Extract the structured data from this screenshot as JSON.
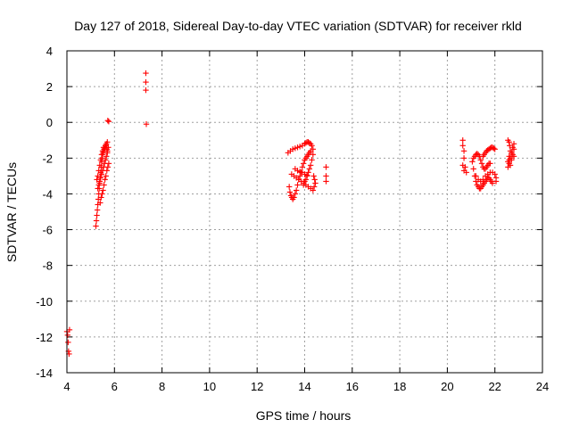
{
  "chart_data": {
    "type": "scatter",
    "title": "Day 127 of 2018, Sidereal Day-to-day VTEC variation (SDTVAR) for receiver rkld",
    "xlabel": "GPS time / hours",
    "ylabel": "SDTVAR / TECUs",
    "xlim": [
      4,
      24
    ],
    "ylim": [
      -14,
      4
    ],
    "xticks": [
      4,
      6,
      8,
      10,
      12,
      14,
      16,
      18,
      20,
      22,
      24
    ],
    "yticks": [
      4,
      2,
      0,
      -2,
      -4,
      -6,
      -8,
      -10,
      -12,
      -14
    ],
    "grid": true,
    "marker": "+",
    "marker_color": "#ff0000",
    "series": [
      {
        "name": "SDTVAR",
        "points": [
          [
            4.0,
            -11.7
          ],
          [
            4.03,
            -11.9
          ],
          [
            4.05,
            -12.3
          ],
          [
            4.07,
            -12.8
          ],
          [
            4.09,
            -12.95
          ],
          [
            4.11,
            -11.6
          ],
          [
            5.22,
            -5.8
          ],
          [
            5.24,
            -5.5
          ],
          [
            5.26,
            -5.2
          ],
          [
            5.28,
            -4.9
          ],
          [
            5.3,
            -4.6
          ],
          [
            5.32,
            -4.3
          ],
          [
            5.34,
            -4.0
          ],
          [
            5.36,
            -3.7
          ],
          [
            5.38,
            -3.4
          ],
          [
            5.4,
            -3.1
          ],
          [
            5.42,
            -2.8
          ],
          [
            5.44,
            -2.5
          ],
          [
            5.46,
            -2.2
          ],
          [
            5.48,
            -2.0
          ],
          [
            5.5,
            -1.8
          ],
          [
            5.52,
            -1.7
          ],
          [
            5.54,
            -1.6
          ],
          [
            5.56,
            -1.5
          ],
          [
            5.58,
            -1.5
          ],
          [
            5.6,
            -1.4
          ],
          [
            5.62,
            -1.3
          ],
          [
            5.64,
            -1.3
          ],
          [
            5.66,
            -1.2
          ],
          [
            5.68,
            -1.5
          ],
          [
            5.7,
            -1.7
          ],
          [
            5.26,
            -3.2
          ],
          [
            5.3,
            -3.0
          ],
          [
            5.34,
            -2.7
          ],
          [
            5.38,
            -2.4
          ],
          [
            5.42,
            -2.1
          ],
          [
            5.46,
            -1.8
          ],
          [
            5.5,
            -1.6
          ],
          [
            5.54,
            -1.4
          ],
          [
            5.3,
            -3.7
          ],
          [
            5.34,
            -3.5
          ],
          [
            5.38,
            -3.3
          ],
          [
            5.42,
            -3.1
          ],
          [
            5.46,
            -2.9
          ],
          [
            5.5,
            -2.7
          ],
          [
            5.54,
            -2.5
          ],
          [
            5.58,
            -2.3
          ],
          [
            5.62,
            -2.1
          ],
          [
            5.66,
            -1.9
          ],
          [
            5.7,
            -1.6
          ],
          [
            5.74,
            -1.4
          ],
          [
            5.4,
            -4.5
          ],
          [
            5.44,
            -4.2
          ],
          [
            5.48,
            -4.0
          ],
          [
            5.52,
            -3.8
          ],
          [
            5.56,
            -3.5
          ],
          [
            5.6,
            -3.2
          ],
          [
            5.64,
            -3.0
          ],
          [
            5.68,
            -2.7
          ],
          [
            5.72,
            -2.5
          ],
          [
            5.76,
            -2.3
          ],
          [
            5.72,
            0.1
          ],
          [
            5.76,
            0.05
          ],
          [
            5.7,
            -1.1
          ],
          [
            7.32,
            2.75
          ],
          [
            7.32,
            2.25
          ],
          [
            7.32,
            1.8
          ],
          [
            7.34,
            -0.1
          ],
          [
            13.3,
            -1.7
          ],
          [
            13.4,
            -1.6
          ],
          [
            13.35,
            -3.6
          ],
          [
            13.38,
            -3.9
          ],
          [
            13.42,
            -4.1
          ],
          [
            13.46,
            -4.2
          ],
          [
            13.5,
            -4.3
          ],
          [
            13.55,
            -4.2
          ],
          [
            13.6,
            -4.0
          ],
          [
            13.65,
            -3.8
          ],
          [
            13.7,
            -3.5
          ],
          [
            13.75,
            -3.2
          ],
          [
            13.8,
            -3.0
          ],
          [
            13.85,
            -2.8
          ],
          [
            13.9,
            -2.5
          ],
          [
            13.95,
            -2.3
          ],
          [
            14.0,
            -2.1
          ],
          [
            14.05,
            -2.0
          ],
          [
            14.1,
            -1.9
          ],
          [
            14.15,
            -1.8
          ],
          [
            14.2,
            -1.7
          ],
          [
            14.25,
            -1.6
          ],
          [
            13.5,
            -1.5
          ],
          [
            13.6,
            -1.45
          ],
          [
            13.7,
            -1.4
          ],
          [
            13.8,
            -1.35
          ],
          [
            13.9,
            -1.3
          ],
          [
            14.0,
            -1.2
          ],
          [
            14.05,
            -1.15
          ],
          [
            14.1,
            -1.1
          ],
          [
            14.15,
            -1.1
          ],
          [
            14.2,
            -1.15
          ],
          [
            14.25,
            -1.2
          ],
          [
            14.3,
            -1.3
          ],
          [
            14.35,
            -1.5
          ],
          [
            14.35,
            -1.8
          ],
          [
            14.3,
            -2.1
          ],
          [
            14.25,
            -2.4
          ],
          [
            14.2,
            -2.6
          ],
          [
            14.15,
            -2.8
          ],
          [
            14.1,
            -3.0
          ],
          [
            14.05,
            -3.2
          ],
          [
            14.0,
            -3.3
          ],
          [
            13.95,
            -3.5
          ],
          [
            13.45,
            -2.9
          ],
          [
            13.55,
            -3.0
          ],
          [
            13.65,
            -3.1
          ],
          [
            13.75,
            -3.2
          ],
          [
            13.85,
            -3.3
          ],
          [
            13.95,
            -3.4
          ],
          [
            14.05,
            -3.5
          ],
          [
            14.15,
            -3.6
          ],
          [
            14.25,
            -3.7
          ],
          [
            14.35,
            -3.8
          ],
          [
            14.4,
            -3.6
          ],
          [
            14.45,
            -3.4
          ],
          [
            14.42,
            -3.2
          ],
          [
            14.38,
            -3.0
          ],
          [
            13.6,
            -2.6
          ],
          [
            13.7,
            -2.7
          ],
          [
            13.8,
            -2.75
          ],
          [
            13.9,
            -2.8
          ],
          [
            14.0,
            -2.9
          ],
          [
            14.1,
            -2.95
          ],
          [
            14.9,
            -2.5
          ],
          [
            14.9,
            -3.0
          ],
          [
            14.9,
            -3.3
          ],
          [
            20.65,
            -1.0
          ],
          [
            20.65,
            -1.3
          ],
          [
            20.7,
            -1.6
          ],
          [
            20.7,
            -2.0
          ],
          [
            20.65,
            -2.4
          ],
          [
            20.7,
            -2.7
          ],
          [
            20.75,
            -2.5
          ],
          [
            20.8,
            -2.8
          ],
          [
            21.05,
            -2.2
          ],
          [
            21.1,
            -2.6
          ],
          [
            21.15,
            -3.0
          ],
          [
            21.2,
            -3.3
          ],
          [
            21.25,
            -3.5
          ],
          [
            21.3,
            -3.6
          ],
          [
            21.35,
            -3.7
          ],
          [
            21.4,
            -3.7
          ],
          [
            21.45,
            -3.6
          ],
          [
            21.5,
            -3.5
          ],
          [
            21.55,
            -3.4
          ],
          [
            21.6,
            -3.3
          ],
          [
            21.65,
            -3.2
          ],
          [
            21.7,
            -3.1
          ],
          [
            21.75,
            -3.1
          ],
          [
            21.8,
            -3.2
          ],
          [
            21.85,
            -3.3
          ],
          [
            21.9,
            -3.4
          ],
          [
            21.1,
            -2.0
          ],
          [
            21.15,
            -1.9
          ],
          [
            21.2,
            -1.8
          ],
          [
            21.25,
            -1.75
          ],
          [
            21.3,
            -1.8
          ],
          [
            21.35,
            -1.9
          ],
          [
            21.4,
            -2.1
          ],
          [
            21.45,
            -2.3
          ],
          [
            21.5,
            -2.5
          ],
          [
            21.55,
            -2.6
          ],
          [
            21.6,
            -2.6
          ],
          [
            21.65,
            -2.5
          ],
          [
            21.7,
            -2.4
          ],
          [
            21.75,
            -2.3
          ],
          [
            21.8,
            -2.3
          ],
          [
            21.5,
            -1.9
          ],
          [
            21.55,
            -1.8
          ],
          [
            21.6,
            -1.7
          ],
          [
            21.65,
            -1.6
          ],
          [
            21.7,
            -1.55
          ],
          [
            21.75,
            -1.5
          ],
          [
            21.8,
            -1.45
          ],
          [
            21.85,
            -1.4
          ],
          [
            21.9,
            -1.4
          ],
          [
            21.95,
            -1.45
          ],
          [
            22.0,
            -1.5
          ],
          [
            21.2,
            -3.0
          ],
          [
            21.3,
            -3.2
          ],
          [
            21.4,
            -3.3
          ],
          [
            21.5,
            -3.2
          ],
          [
            21.6,
            -3.0
          ],
          [
            21.7,
            -2.9
          ],
          [
            21.8,
            -2.8
          ],
          [
            21.9,
            -2.8
          ],
          [
            22.0,
            -2.9
          ],
          [
            22.05,
            -3.1
          ],
          [
            22.05,
            -3.3
          ],
          [
            22.55,
            -1.0
          ],
          [
            22.6,
            -1.1
          ],
          [
            22.62,
            -1.3
          ],
          [
            22.65,
            -1.6
          ],
          [
            22.6,
            -1.9
          ],
          [
            22.55,
            -2.2
          ],
          [
            22.55,
            -2.5
          ],
          [
            22.6,
            -2.3
          ],
          [
            22.65,
            -2.0
          ],
          [
            22.7,
            -1.7
          ],
          [
            22.75,
            -1.4
          ],
          [
            22.8,
            -1.2
          ],
          [
            22.8,
            -1.5
          ],
          [
            22.75,
            -1.8
          ],
          [
            22.7,
            -2.1
          ],
          [
            22.65,
            -2.4
          ],
          [
            22.6,
            -2.1
          ],
          [
            22.8,
            -1.9
          ]
        ]
      }
    ]
  }
}
